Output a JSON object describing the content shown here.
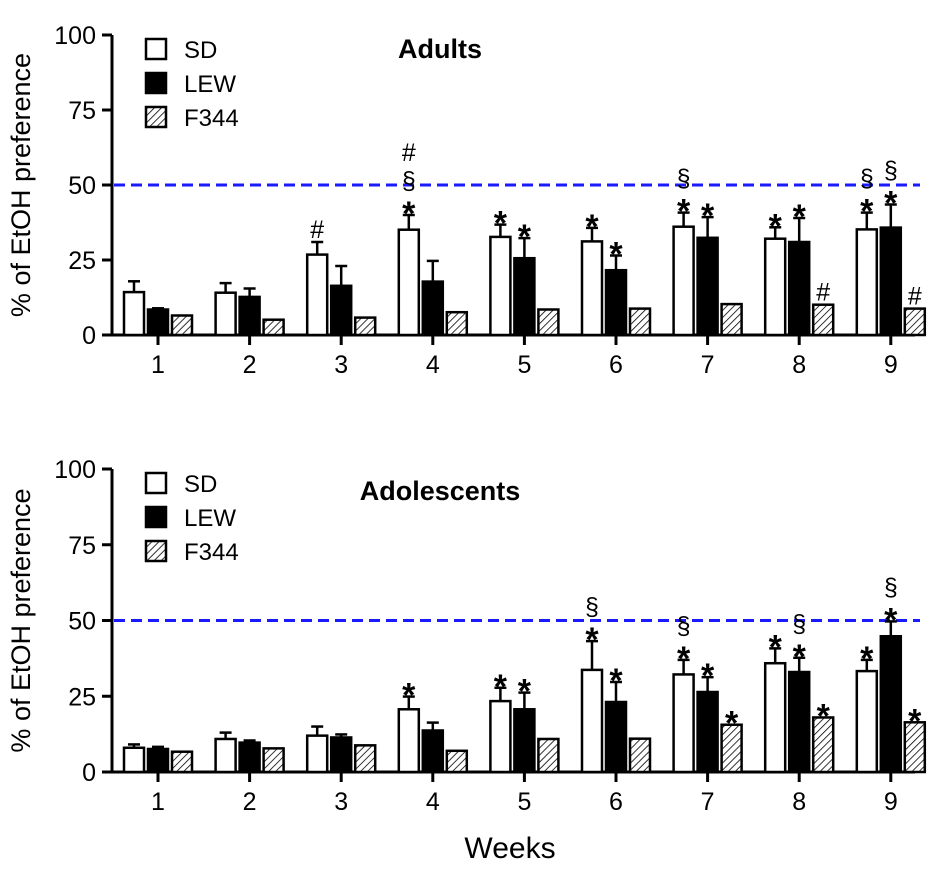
{
  "chart_data": [
    {
      "type": "bar",
      "title": "Adults",
      "ylabel": "% of EtOH preference",
      "xlabel": "",
      "ylim": [
        0,
        100
      ],
      "yticks": [
        0,
        25,
        50,
        75,
        100
      ],
      "categories": [
        "1",
        "2",
        "3",
        "4",
        "5",
        "6",
        "7",
        "8",
        "9"
      ],
      "reference_line": {
        "y": 50,
        "style": "dashed",
        "color": "#1a1aff"
      },
      "legend": "top-left",
      "series": [
        {
          "name": "SD",
          "fill": "white",
          "values": [
            14.3,
            14.1,
            26.8,
            35.1,
            32.7,
            31.2,
            36.1,
            32.1,
            35.2
          ],
          "error": [
            3.6,
            3.2,
            4.2,
            4.9,
            4.1,
            4.5,
            4.7,
            3.8,
            5.6
          ],
          "annotations": [
            [],
            [],
            [
              "#"
            ],
            [
              "*",
              "§",
              "#"
            ],
            [
              "*"
            ],
            [
              "*"
            ],
            [
              "*",
              "§"
            ],
            [
              "*"
            ],
            [
              "*",
              "§"
            ]
          ]
        },
        {
          "name": "LEW",
          "fill": "black",
          "values": [
            8.5,
            12.7,
            16.4,
            17.8,
            25.6,
            21.6,
            32.4,
            31.0,
            35.8
          ],
          "error": [
            0.4,
            2.8,
            6.6,
            6.9,
            6.7,
            4.9,
            6.9,
            8.0,
            7.7
          ],
          "annotations": [
            [],
            [],
            [],
            [],
            [
              "*"
            ],
            [
              "*"
            ],
            [
              "*"
            ],
            [
              "*"
            ],
            [
              "*",
              "§"
            ]
          ]
        },
        {
          "name": "F344",
          "fill": "hatched",
          "values": [
            6.5,
            5.1,
            5.8,
            7.6,
            8.5,
            8.8,
            10.3,
            10.1,
            8.8
          ],
          "error": [
            0,
            0,
            0,
            0,
            0,
            0,
            0,
            0,
            0
          ],
          "annotations": [
            [],
            [],
            [],
            [],
            [],
            [],
            [],
            [
              "#"
            ],
            [
              "#"
            ]
          ]
        }
      ]
    },
    {
      "type": "bar",
      "title": "Adolescents",
      "ylabel": "% of EtOH preference",
      "xlabel": "Weeks",
      "ylim": [
        0,
        100
      ],
      "yticks": [
        0,
        25,
        50,
        75,
        100
      ],
      "categories": [
        "1",
        "2",
        "3",
        "4",
        "5",
        "6",
        "7",
        "8",
        "9"
      ],
      "reference_line": {
        "y": 50,
        "style": "dashed",
        "color": "#1a1aff"
      },
      "legend": "top-left",
      "series": [
        {
          "name": "SD",
          "fill": "white",
          "values": [
            8.0,
            10.9,
            12.0,
            20.7,
            23.4,
            33.7,
            32.2,
            35.9,
            33.3
          ],
          "error": [
            1.1,
            2.1,
            3.0,
            4.2,
            4.4,
            9.5,
            4.8,
            4.9,
            3.7
          ],
          "annotations": [
            [],
            [],
            [],
            [
              "*"
            ],
            [
              "*"
            ],
            [
              "*",
              "§"
            ],
            [
              "*",
              "§"
            ],
            [
              "*"
            ],
            [
              "*"
            ]
          ]
        },
        {
          "name": "LEW",
          "fill": "black",
          "values": [
            7.6,
            9.7,
            11.4,
            13.7,
            20.7,
            23.1,
            26.4,
            33.0,
            44.8
          ],
          "error": [
            0.7,
            0.7,
            1.0,
            2.6,
            5.5,
            6.6,
            4.9,
            4.7,
            4.9
          ],
          "annotations": [
            [],
            [],
            [],
            [],
            [
              "*"
            ],
            [
              "*"
            ],
            [
              "*"
            ],
            [
              "*",
              "§"
            ],
            [
              "*",
              "§"
            ]
          ]
        },
        {
          "name": "F344",
          "fill": "hatched",
          "values": [
            6.7,
            7.8,
            8.8,
            7.0,
            10.9,
            11.0,
            15.6,
            18.0,
            16.4
          ],
          "error": [
            0,
            0,
            0,
            0,
            0,
            0,
            0,
            0,
            0
          ],
          "annotations": [
            [],
            [],
            [],
            [],
            [],
            [],
            [
              "*"
            ],
            [
              "*"
            ],
            [
              "*"
            ]
          ]
        }
      ]
    }
  ]
}
